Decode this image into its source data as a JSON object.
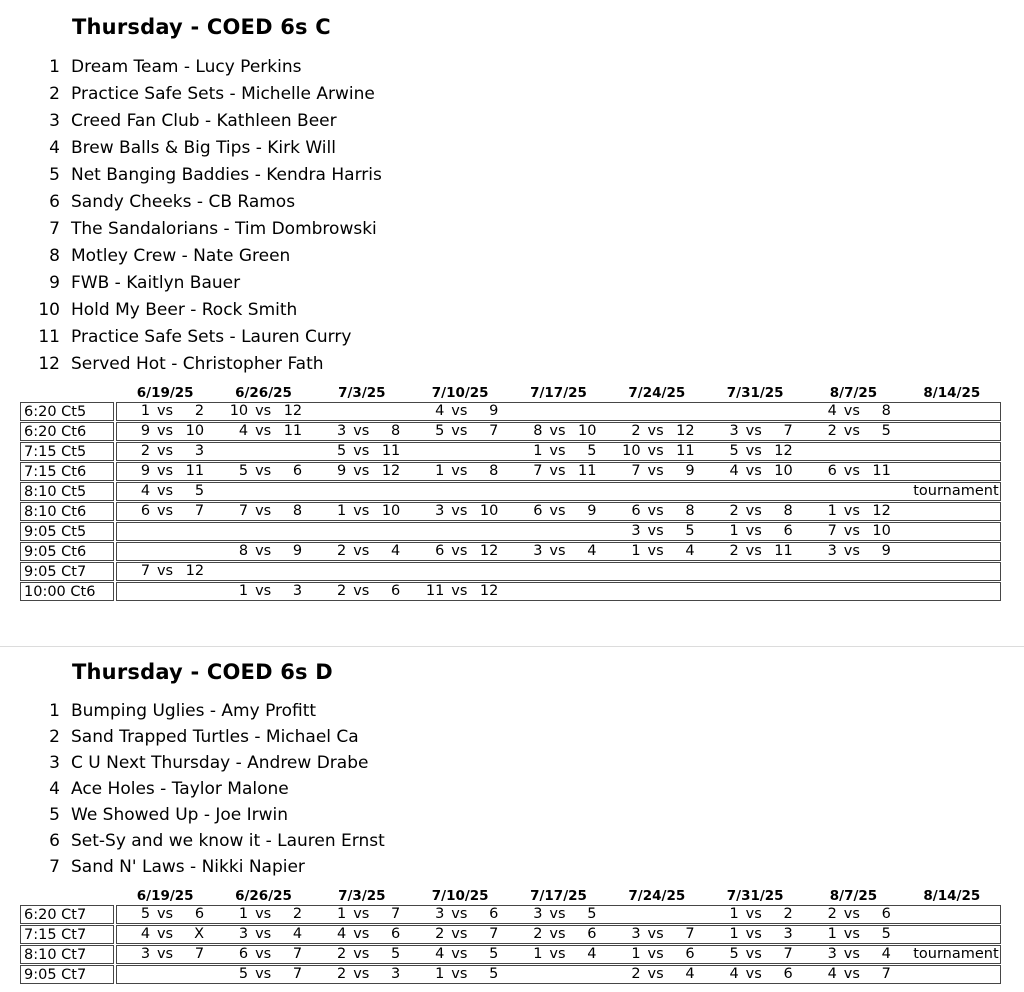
{
  "page": {
    "background": "#ffffff",
    "text_color": "#000000",
    "table_border_color": "#464646",
    "divider_color": "#dcdcdc"
  },
  "sections": [
    {
      "title": "Thursday - COED 6s C",
      "teams": [
        {
          "num": "1",
          "label": "Dream Team - Lucy Perkins"
        },
        {
          "num": "2",
          "label": "Practice Safe Sets - Michelle Arwine"
        },
        {
          "num": "3",
          "label": "Creed Fan Club - Kathleen Beer"
        },
        {
          "num": "4",
          "label": "Brew Balls & Big Tips - Kirk Will"
        },
        {
          "num": "5",
          "label": "Net Banging Baddies - Kendra Harris"
        },
        {
          "num": "6",
          "label": "Sandy Cheeks - CB Ramos"
        },
        {
          "num": "7",
          "label": "The Sandalorians - Tim Dombrowski"
        },
        {
          "num": "8",
          "label": "Motley Crew - Nate Green"
        },
        {
          "num": "9",
          "label": "FWB - Kaitlyn Bauer"
        },
        {
          "num": "10",
          "label": "Hold My Beer - Rock Smith"
        },
        {
          "num": "11",
          "label": "Practice Safe Sets - Lauren Curry"
        },
        {
          "num": "12",
          "label": "Served Hot - Christopher Fath"
        }
      ],
      "schedule": {
        "dates": [
          "6/19/25",
          "6/26/25",
          "7/3/25",
          "7/10/25",
          "7/17/25",
          "7/24/25",
          "7/31/25",
          "8/7/25",
          "8/14/25"
        ],
        "rows": [
          {
            "slot": "6:20 Ct5",
            "matches": [
              "1 vs 2",
              "10 vs 12",
              "",
              "4 vs 9",
              "",
              "",
              "",
              "4 vs 8",
              ""
            ]
          },
          {
            "slot": "6:20 Ct6",
            "matches": [
              "9 vs 10",
              "4 vs 11",
              "3 vs 8",
              "5 vs 7",
              "8 vs 10",
              "2 vs 12",
              "3 vs 7",
              "2 vs 5",
              ""
            ]
          },
          {
            "slot": "7:15 Ct5",
            "matches": [
              "2 vs 3",
              "",
              "5 vs 11",
              "",
              "1 vs 5",
              "10 vs 11",
              "5 vs 12",
              "",
              ""
            ]
          },
          {
            "slot": "7:15 Ct6",
            "matches": [
              "9 vs 11",
              "5 vs 6",
              "9 vs 12",
              "1 vs 8",
              "7 vs 11",
              "7 vs 9",
              "4 vs 10",
              "6 vs 11",
              ""
            ]
          },
          {
            "slot": "8:10 Ct5",
            "matches": [
              "4 vs 5",
              "",
              "",
              "",
              "",
              "",
              "",
              "",
              "tournament"
            ]
          },
          {
            "slot": "8:10 Ct6",
            "matches": [
              "6 vs 7",
              "7 vs 8",
              "1 vs 10",
              "3 vs 10",
              "6 vs 9",
              "6 vs 8",
              "2 vs 8",
              "1 vs 12",
              ""
            ]
          },
          {
            "slot": "9:05 Ct5",
            "matches": [
              "",
              "",
              "",
              "",
              "",
              "3 vs 5",
              "1 vs 6",
              "7 vs 10",
              ""
            ]
          },
          {
            "slot": "9:05 Ct6",
            "matches": [
              "",
              "8 vs 9",
              "2 vs 4",
              "6 vs 12",
              "3 vs 4",
              "1 vs 4",
              "2 vs 11",
              "3 vs 9",
              ""
            ]
          },
          {
            "slot": "9:05 Ct7",
            "matches": [
              "7 vs 12",
              "",
              "",
              "",
              "",
              "",
              "",
              "",
              ""
            ]
          },
          {
            "slot": "10:00 Ct6",
            "matches": [
              "",
              "1 vs 3",
              "2 vs 6",
              "11 vs 12",
              "",
              "",
              "",
              "",
              ""
            ]
          }
        ]
      }
    },
    {
      "title": "Thursday - COED 6s D",
      "teams": [
        {
          "num": "1",
          "label": "Bumping Uglies - Amy Profitt"
        },
        {
          "num": "2",
          "label": "Sand Trapped Turtles - Michael Ca"
        },
        {
          "num": "3",
          "label": "C U Next Thursday - Andrew Drabe"
        },
        {
          "num": "4",
          "label": "Ace Holes - Taylor Malone"
        },
        {
          "num": "5",
          "label": "We Showed Up - Joe Irwin"
        },
        {
          "num": "6",
          "label": "Set-Sy and we know it - Lauren Ernst"
        },
        {
          "num": "7",
          "label": "Sand N' Laws - Nikki Napier"
        }
      ],
      "schedule": {
        "dates": [
          "6/19/25",
          "6/26/25",
          "7/3/25",
          "7/10/25",
          "7/17/25",
          "7/24/25",
          "7/31/25",
          "8/7/25",
          "8/14/25"
        ],
        "rows": [
          {
            "slot": "6:20 Ct7",
            "matches": [
              "5 vs 6",
              "1 vs 2",
              "1 vs 7",
              "3 vs 6",
              "3 vs 5",
              "",
              "1 vs 2",
              "2 vs 6",
              ""
            ]
          },
          {
            "slot": "7:15 Ct7",
            "matches": [
              "4 vs X",
              "3 vs 4",
              "4 vs 6",
              "2 vs 7",
              "2 vs 6",
              "3 vs 7",
              "1 vs 3",
              "1 vs 5",
              ""
            ]
          },
          {
            "slot": "8:10 Ct7",
            "matches": [
              "3 vs 7",
              "6 vs 7",
              "2 vs 5",
              "4 vs 5",
              "1 vs 4",
              "1 vs 6",
              "5 vs 7",
              "3 vs 4",
              "tournament"
            ]
          },
          {
            "slot": "9:05 Ct7",
            "matches": [
              "",
              "5 vs 7",
              "2 vs 3",
              "1 vs 5",
              "",
              "2 vs 4",
              "4 vs 6",
              "4 vs 7",
              ""
            ]
          }
        ]
      }
    }
  ],
  "vs_label": "vs"
}
